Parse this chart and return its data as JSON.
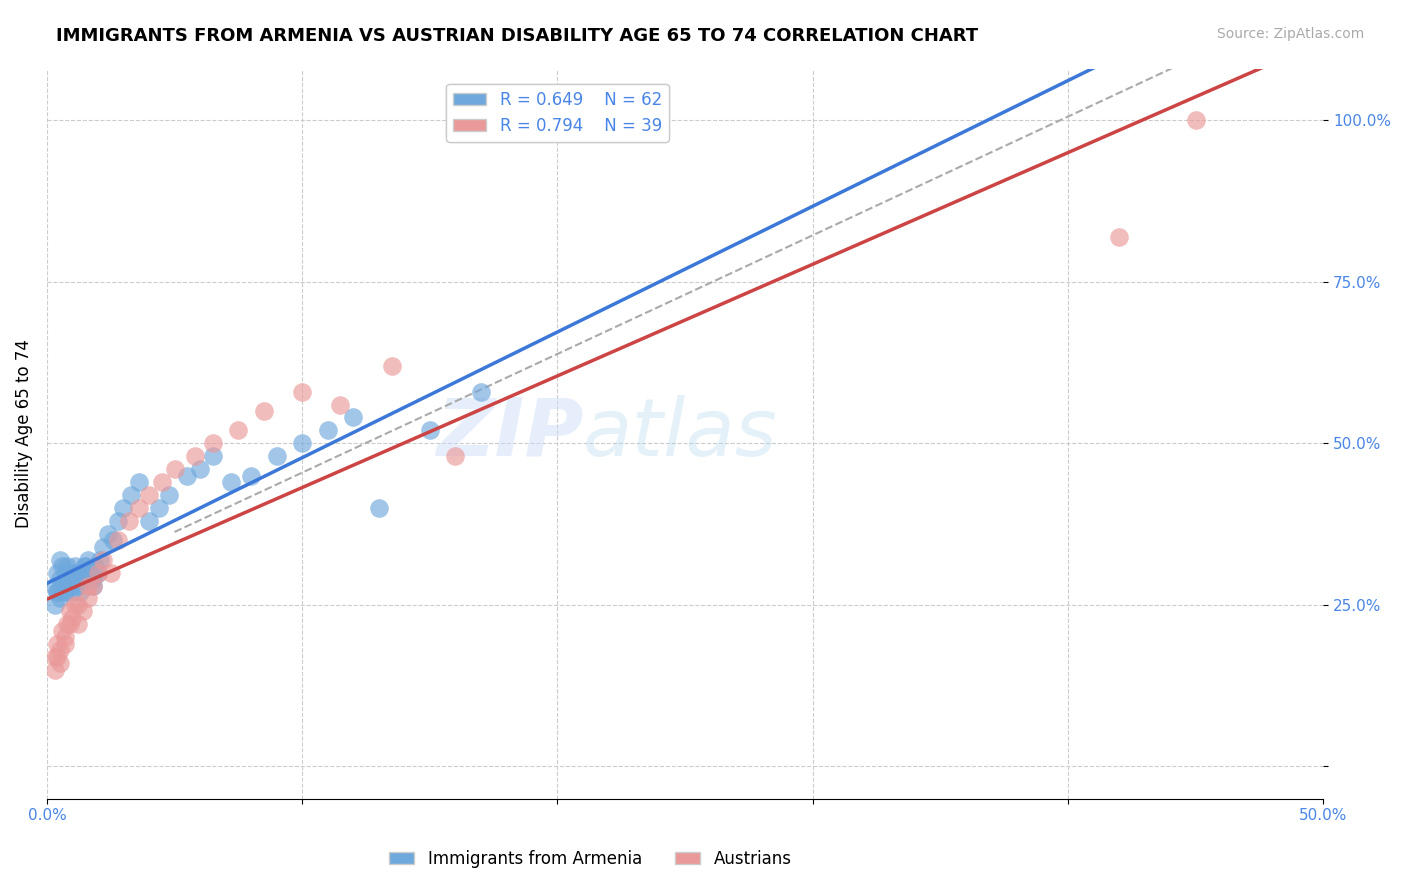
{
  "title": "IMMIGRANTS FROM ARMENIA VS AUSTRIAN DISABILITY AGE 65 TO 74 CORRELATION CHART",
  "source": "Source: ZipAtlas.com",
  "xlabel": "",
  "ylabel": "Disability Age 65 to 74",
  "xlim": [
    0.0,
    0.5
  ],
  "ylim": [
    -0.05,
    1.08
  ],
  "xticks": [
    0.0,
    0.1,
    0.2,
    0.3,
    0.4,
    0.5
  ],
  "xticklabels": [
    "0.0%",
    "",
    "",
    "",
    "",
    "50.0%"
  ],
  "yticks": [
    0.0,
    0.25,
    0.5,
    0.75,
    1.0
  ],
  "yticklabels": [
    "",
    "25.0%",
    "50.0%",
    "75.0%",
    "100.0%"
  ],
  "blue_R": 0.649,
  "blue_N": 62,
  "pink_R": 0.794,
  "pink_N": 39,
  "legend_label_blue": "Immigrants from Armenia",
  "legend_label_pink": "Austrians",
  "watermark_zip": "ZIP",
  "watermark_atlas": "atlas",
  "blue_color": "#6fa8dc",
  "pink_color": "#ea9999",
  "blue_line_color": "#3c78d8",
  "pink_line_color": "#cc4444",
  "title_fontsize": 13,
  "axis_label_color": "#4a86e8",
  "tick_color": "#4a86e8",
  "blue_x": [
    0.003,
    0.004,
    0.004,
    0.005,
    0.005,
    0.006,
    0.006,
    0.007,
    0.007,
    0.008,
    0.008,
    0.009,
    0.009,
    0.01,
    0.01,
    0.011,
    0.011,
    0.012,
    0.012,
    0.013,
    0.013,
    0.014,
    0.015,
    0.016,
    0.017,
    0.018,
    0.019,
    0.02,
    0.021,
    0.022,
    0.024,
    0.026,
    0.028,
    0.03,
    0.033,
    0.036,
    0.04,
    0.044,
    0.048,
    0.055,
    0.06,
    0.065,
    0.072,
    0.08,
    0.09,
    0.1,
    0.11,
    0.12,
    0.13,
    0.15,
    0.003,
    0.004,
    0.005,
    0.006,
    0.007,
    0.008,
    0.009,
    0.01,
    0.012,
    0.015,
    0.018,
    0.17
  ],
  "blue_y": [
    0.28,
    0.3,
    0.27,
    0.29,
    0.32,
    0.28,
    0.31,
    0.3,
    0.27,
    0.29,
    0.31,
    0.28,
    0.3,
    0.29,
    0.27,
    0.31,
    0.29,
    0.28,
    0.3,
    0.29,
    0.27,
    0.3,
    0.31,
    0.32,
    0.3,
    0.29,
    0.31,
    0.3,
    0.32,
    0.34,
    0.36,
    0.35,
    0.38,
    0.4,
    0.42,
    0.44,
    0.38,
    0.4,
    0.42,
    0.45,
    0.46,
    0.48,
    0.44,
    0.45,
    0.48,
    0.5,
    0.52,
    0.54,
    0.4,
    0.52,
    0.25,
    0.27,
    0.26,
    0.28,
    0.27,
    0.29,
    0.28,
    0.3,
    0.29,
    0.31,
    0.28,
    0.58
  ],
  "pink_x": [
    0.003,
    0.004,
    0.005,
    0.006,
    0.007,
    0.008,
    0.009,
    0.01,
    0.011,
    0.012,
    0.014,
    0.016,
    0.018,
    0.02,
    0.022,
    0.025,
    0.028,
    0.032,
    0.036,
    0.04,
    0.045,
    0.05,
    0.058,
    0.065,
    0.075,
    0.085,
    0.1,
    0.115,
    0.135,
    0.16,
    0.003,
    0.004,
    0.005,
    0.007,
    0.009,
    0.012,
    0.016,
    0.45,
    0.42
  ],
  "pink_y": [
    0.17,
    0.19,
    0.18,
    0.21,
    0.2,
    0.22,
    0.24,
    0.23,
    0.25,
    0.22,
    0.24,
    0.26,
    0.28,
    0.3,
    0.32,
    0.3,
    0.35,
    0.38,
    0.4,
    0.42,
    0.44,
    0.46,
    0.48,
    0.5,
    0.52,
    0.55,
    0.58,
    0.56,
    0.62,
    0.48,
    0.15,
    0.17,
    0.16,
    0.19,
    0.22,
    0.25,
    0.28,
    1.0,
    0.82
  ]
}
